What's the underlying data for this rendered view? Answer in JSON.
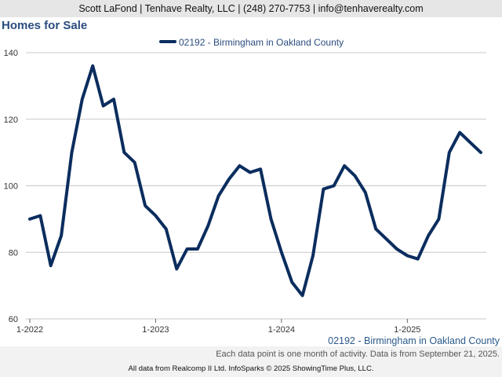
{
  "header": {
    "contact": "Scott LaFond | Tenhave Realty, LLC | (248) 270-7753 | info@tenhaverealty.com"
  },
  "page_title": "Homes for Sale",
  "footer": {
    "series_label": "02192 - Birmingham in Oakland County",
    "note": "Each data point is one month of activity. Data is from September 21, 2025.",
    "credits": "All data from Realcomp II Ltd. InfoSparks © 2025 ShowingTime Plus, LLC."
  },
  "colors": {
    "series": "#0b2d5e",
    "title": "#2b4c7e",
    "grid": "#c8c8c8",
    "topbar": "#e6e6e6"
  },
  "chart_data": {
    "type": "line",
    "title": "Homes for Sale",
    "xlabel": "",
    "ylabel": "",
    "ylim": [
      60,
      140
    ],
    "yticks": [
      "60",
      "80",
      "100",
      "120",
      "140"
    ],
    "xticks": [
      "1-2022",
      "1-2023",
      "1-2024",
      "1-2025"
    ],
    "legend_position": "top-center",
    "grid": true,
    "series": [
      {
        "name": "02192 - Birmingham in Oakland County",
        "x": [
          "2022-01",
          "2022-02",
          "2022-03",
          "2022-04",
          "2022-05",
          "2022-06",
          "2022-07",
          "2022-08",
          "2022-09",
          "2022-10",
          "2022-11",
          "2022-12",
          "2023-01",
          "2023-02",
          "2023-03",
          "2023-04",
          "2023-05",
          "2023-06",
          "2023-07",
          "2023-08",
          "2023-09",
          "2023-10",
          "2023-11",
          "2023-12",
          "2024-01",
          "2024-02",
          "2024-03",
          "2024-04",
          "2024-05",
          "2024-06",
          "2024-07",
          "2024-08",
          "2024-09",
          "2024-10",
          "2024-11",
          "2024-12",
          "2025-01",
          "2025-02",
          "2025-03",
          "2025-04",
          "2025-05",
          "2025-06",
          "2025-07",
          "2025-08"
        ],
        "values": [
          90,
          91,
          76,
          85,
          110,
          126,
          136,
          124,
          126,
          110,
          107,
          94,
          91,
          87,
          75,
          81,
          81,
          88,
          97,
          102,
          106,
          104,
          105,
          90,
          80,
          71,
          67,
          79,
          99,
          100,
          106,
          103,
          98,
          87,
          84,
          81,
          79,
          78,
          85,
          90,
          110,
          116,
          113,
          110
        ]
      }
    ]
  }
}
